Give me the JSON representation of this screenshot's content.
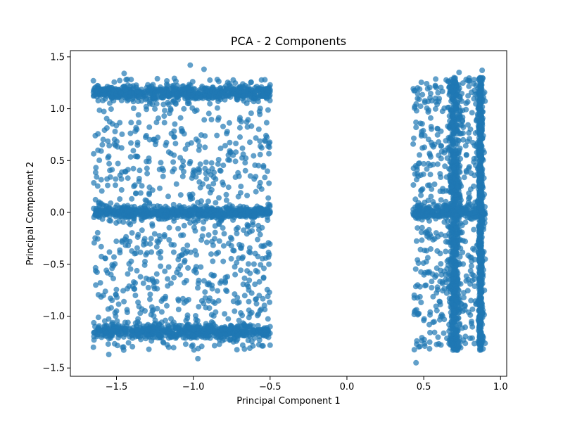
{
  "chart_data": {
    "type": "scatter",
    "title": "PCA - 2 Components",
    "xlabel": "Principal Component 1",
    "ylabel": "Principal Component 2",
    "xlim": [
      -1.8,
      1.04
    ],
    "ylim": [
      -1.58,
      1.56
    ],
    "xticks": [
      -1.5,
      -1.0,
      -0.5,
      0.0,
      0.5,
      1.0
    ],
    "xtick_labels": [
      "−1.5",
      "−1.0",
      "−0.5",
      "0.0",
      "0.5",
      "1.0"
    ],
    "yticks": [
      -1.5,
      -1.0,
      -0.5,
      0.0,
      0.5,
      1.0,
      1.5
    ],
    "ytick_labels": [
      "−1.5",
      "−1.0",
      "−0.5",
      "0.0",
      "0.5",
      "1.0",
      "1.5"
    ],
    "grid": false,
    "marker_color": "#1f77b4",
    "marker_alpha": 0.7,
    "clusters": [
      {
        "x_range": [
          -1.65,
          -0.5
        ],
        "y_range": [
          -1.4,
          1.42
        ],
        "dense_bands": [
          {
            "orientation": "horizontal",
            "center": 0.0,
            "half_width": 0.08
          },
          {
            "orientation": "horizontal",
            "center": 1.15,
            "half_width": 0.1
          },
          {
            "orientation": "horizontal",
            "center": -1.15,
            "half_width": 0.1
          }
        ]
      },
      {
        "x_range": [
          0.43,
          0.9
        ],
        "y_range": [
          -1.45,
          1.37
        ],
        "dense_bands": [
          {
            "orientation": "horizontal",
            "center": 0.0,
            "half_width": 0.1
          },
          {
            "orientation": "vertical",
            "center": 0.7,
            "half_width": 0.05
          },
          {
            "orientation": "vertical",
            "center": 0.87,
            "half_width": 0.02
          }
        ]
      }
    ],
    "sample_points": [
      [
        -1.65,
        1.27
      ],
      [
        -1.45,
        1.34
      ],
      [
        -1.02,
        1.42
      ],
      [
        -0.93,
        1.38
      ],
      [
        -0.5,
        1.23
      ],
      [
        -1.65,
        -1.3
      ],
      [
        -1.55,
        -1.37
      ],
      [
        -0.97,
        -1.41
      ],
      [
        -0.5,
        -1.28
      ],
      [
        -0.57,
        -0.67
      ],
      [
        -0.57,
        0.25
      ],
      [
        -1.6,
        0.0
      ],
      [
        0.45,
        -1.45
      ],
      [
        0.73,
        1.35
      ],
      [
        0.88,
        1.37
      ],
      [
        0.9,
        -0.45
      ],
      [
        0.45,
        0.82
      ],
      [
        0.46,
        -0.7
      ],
      [
        0.62,
        0.0
      ],
      [
        0.7,
        -0.9
      ]
    ]
  }
}
